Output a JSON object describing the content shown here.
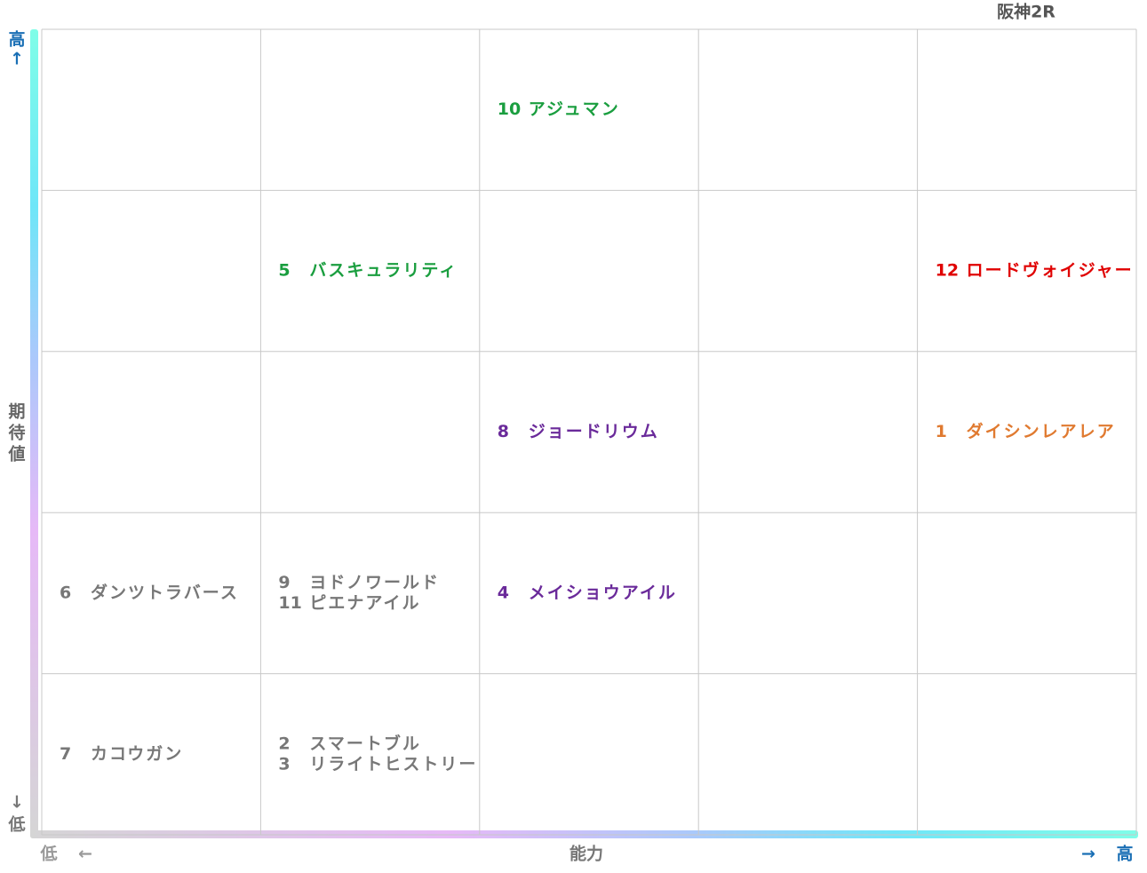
{
  "title": "阪神2R",
  "y_axis": {
    "high": "高",
    "high_arrow": "↑",
    "label": [
      "期",
      "待",
      "値"
    ],
    "low_arrow": "↓",
    "low": "低"
  },
  "x_axis": {
    "low": "低",
    "low_arrow": "←",
    "label": "能力",
    "high_arrow": "→",
    "high": "高"
  },
  "grid": {
    "rows": [
      [
        {
          "entries": []
        },
        {
          "entries": []
        },
        {
          "color": "#1a9e3f",
          "entries": [
            {
              "number": "10",
              "name": "アジュマン"
            }
          ]
        },
        {
          "entries": []
        },
        {
          "entries": []
        }
      ],
      [
        {
          "entries": []
        },
        {
          "color": "#1a9e3f",
          "entries": [
            {
              "number": "5",
              "name": "バスキュラリティ"
            }
          ]
        },
        {
          "entries": []
        },
        {
          "entries": []
        },
        {
          "color": "#e00000",
          "entries": [
            {
              "number": "12",
              "name": "ロードヴォイジャー"
            }
          ]
        }
      ],
      [
        {
          "entries": []
        },
        {
          "entries": []
        },
        {
          "color": "#6a2a9a",
          "entries": [
            {
              "number": "8",
              "name": "ジョードリウム"
            }
          ]
        },
        {
          "entries": []
        },
        {
          "color": "#e07a30",
          "entries": [
            {
              "number": "1",
              "name": "ダイシンレアレア"
            }
          ]
        }
      ],
      [
        {
          "color": "#777777",
          "entries": [
            {
              "number": "6",
              "name": "ダンツトラバース"
            }
          ]
        },
        {
          "color": "#777777",
          "entries": [
            {
              "number": "9",
              "name": "ヨドノワールド"
            },
            {
              "number": "11",
              "name": "ピエナアイル"
            }
          ]
        },
        {
          "color": "#6a2a9a",
          "entries": [
            {
              "number": "4",
              "name": "メイショウアイル"
            }
          ]
        },
        {
          "entries": []
        },
        {
          "entries": []
        }
      ],
      [
        {
          "color": "#777777",
          "entries": [
            {
              "number": "7",
              "name": "カコウガン"
            }
          ]
        },
        {
          "color": "#777777",
          "entries": [
            {
              "number": "2",
              "name": "スマートブル"
            },
            {
              "number": "3",
              "name": "リライトヒストリー"
            }
          ]
        },
        {
          "entries": []
        },
        {
          "entries": []
        },
        {
          "entries": []
        }
      ]
    ]
  }
}
